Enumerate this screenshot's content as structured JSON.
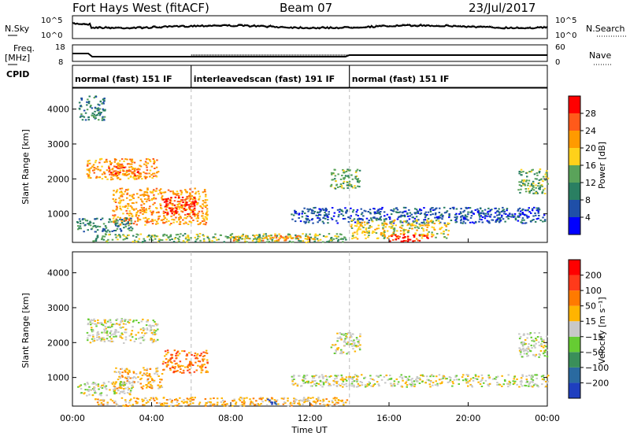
{
  "header": {
    "station": "Fort Hays West (fitACF)",
    "beam": "Beam 07",
    "date": "23/Jul/2017"
  },
  "top_panels": {
    "nsky_label": "N.Sky",
    "nsky_ticks": [
      "10^5",
      "10^0"
    ],
    "nsearch_label": "N.Search",
    "nsearch_ticks": [
      "10^5",
      "10^0"
    ],
    "freq_label": "Freq.",
    "freq_unit": "[MHz]",
    "freq_ticks": [
      "18",
      "8"
    ],
    "nave_label": "Nave",
    "nave_ticks": [
      "60",
      "0"
    ],
    "cpid_label": "CPID",
    "cpid_segments": [
      {
        "label": "normal (fast) 151 IF",
        "start_hour": 0,
        "end_hour": 6
      },
      {
        "label": "interleavedscan (fast) 191 IF",
        "start_hour": 6,
        "end_hour": 14
      },
      {
        "label": "normal (fast) 151 IF",
        "start_hour": 14,
        "end_hour": 24
      }
    ]
  },
  "x_axis": {
    "label": "Time UT",
    "ticks": [
      "00:00",
      "04:00",
      "08:00",
      "12:00",
      "16:00",
      "20:00",
      "00:00"
    ]
  },
  "power_panel": {
    "ylabel": "Slant Range [km]",
    "yticks": [
      "1000",
      "2000",
      "3000",
      "4000"
    ],
    "colorbar_label": "Power [dB]",
    "colorbar_ticks": [
      "4",
      "8",
      "12",
      "16",
      "20",
      "24",
      "28"
    ],
    "colors": [
      "#0000ff",
      "#1f4fa8",
      "#2a7f62",
      "#5aa35a",
      "#ffd11a",
      "#ff9a00",
      "#ff5a1a",
      "#ff0000"
    ]
  },
  "velocity_panel": {
    "ylabel": "Slant Range [km]",
    "yticks": [
      "1000",
      "2000",
      "3000",
      "4000"
    ],
    "colorbar_label": "Velocity [m s⁻¹]",
    "colorbar_ticks": [
      "200",
      "100",
      "50",
      "15",
      "−15",
      "−50",
      "−100",
      "−200"
    ],
    "colors": [
      "#1f3fbf",
      "#2a6aa0",
      "#3a8f5a",
      "#66cc33",
      "#c8c8c8",
      "#ffb400",
      "#ff7a00",
      "#ff3a1a",
      "#ff0000"
    ]
  },
  "chart_data": {
    "type": "heatmap",
    "x_range_hours": [
      0,
      24
    ],
    "y_range_km": [
      180,
      4600
    ],
    "power_regions": [
      {
        "t0": 0.7,
        "t1": 4.3,
        "r0": 2000,
        "r1": 2600,
        "level": 5
      },
      {
        "t0": 1.8,
        "t1": 3.4,
        "r0": 2100,
        "r1": 2450,
        "level": 6
      },
      {
        "t0": 2.0,
        "t1": 6.8,
        "r0": 700,
        "r1": 1750,
        "level": 5
      },
      {
        "t0": 4.5,
        "t1": 6.2,
        "r0": 1000,
        "r1": 1500,
        "level": 7
      },
      {
        "t0": 0.2,
        "t1": 3.0,
        "r0": 500,
        "r1": 900,
        "level": 2
      },
      {
        "t0": 1.0,
        "t1": 13.8,
        "r0": 200,
        "r1": 450,
        "level": 3
      },
      {
        "t0": 8.0,
        "t1": 12.5,
        "r0": 250,
        "r1": 400,
        "level": 5
      },
      {
        "t0": 11.0,
        "t1": 24.0,
        "r0": 750,
        "r1": 1200,
        "level": 1
      },
      {
        "t0": 14.0,
        "t1": 19.0,
        "r0": 300,
        "r1": 850,
        "level": 4
      },
      {
        "t0": 16.0,
        "t1": 18.2,
        "r0": 230,
        "r1": 420,
        "level": 7
      },
      {
        "t0": 13.0,
        "t1": 14.5,
        "r0": 1700,
        "r1": 2300,
        "level": 3
      },
      {
        "t0": 22.5,
        "t1": 24.0,
        "r0": 1600,
        "r1": 2300,
        "level": 3
      },
      {
        "t0": 0.3,
        "t1": 1.6,
        "r0": 3700,
        "r1": 4400,
        "level": 2
      }
    ],
    "velocity_regions": [
      {
        "t0": 0.7,
        "t1": 4.3,
        "r0": 2000,
        "r1": 2700,
        "level": 4
      },
      {
        "t0": 4.5,
        "t1": 6.8,
        "r0": 1150,
        "r1": 1800,
        "level": 6
      },
      {
        "t0": 2.0,
        "t1": 4.5,
        "r0": 700,
        "r1": 1300,
        "level": 5
      },
      {
        "t0": 0.2,
        "t1": 3.0,
        "r0": 500,
        "r1": 900,
        "level": 4
      },
      {
        "t0": 1.0,
        "t1": 14.0,
        "r0": 200,
        "r1": 450,
        "level": 5
      },
      {
        "t0": 9.8,
        "t1": 10.4,
        "r0": 250,
        "r1": 400,
        "level": 0
      },
      {
        "t0": 11.0,
        "t1": 24.0,
        "r0": 750,
        "r1": 1100,
        "level": 4
      },
      {
        "t0": 13.0,
        "t1": 14.5,
        "r0": 1700,
        "r1": 2300,
        "level": 4
      },
      {
        "t0": 22.5,
        "t1": 24.0,
        "r0": 1600,
        "r1": 2300,
        "level": 4
      }
    ]
  }
}
